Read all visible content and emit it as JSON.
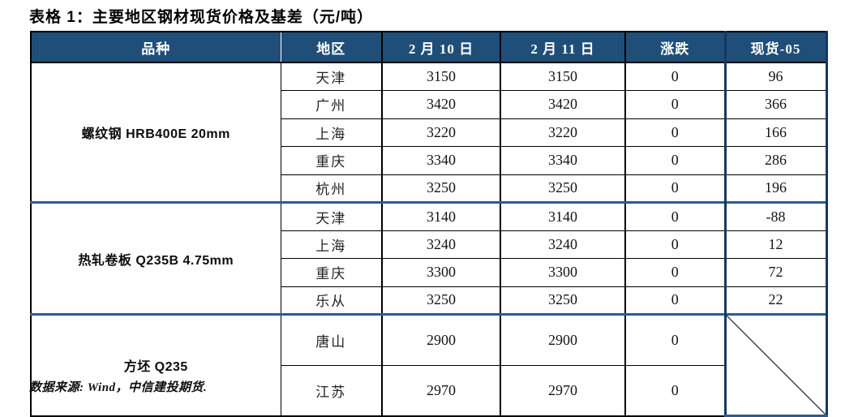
{
  "title": "表格 1：主要地区钢材现货价格及基差（元/吨）",
  "footer": {
    "source": "数据来源: Wind，中信建投期货."
  },
  "colors": {
    "header_bg": "#1F4E79",
    "header_text": "#FFFFFF",
    "section_divider_blue": "#2E5C8A",
    "basis_column_border": "#17375E",
    "grid_border": "#000000"
  },
  "table": {
    "columns": [
      "品种",
      "地区",
      "2 月 10 日",
      "2 月 11 日",
      "涨跌",
      "现货-05"
    ],
    "sections": [
      {
        "product": "螺纹钢 HRB400E 20mm",
        "rows": [
          {
            "region": "天津",
            "d10": "3150",
            "d11": "3150",
            "change": "0",
            "basis": "96"
          },
          {
            "region": "广州",
            "d10": "3420",
            "d11": "3420",
            "change": "0",
            "basis": "366"
          },
          {
            "region": "上海",
            "d10": "3220",
            "d11": "3220",
            "change": "0",
            "basis": "166"
          },
          {
            "region": "重庆",
            "d10": "3340",
            "d11": "3340",
            "change": "0",
            "basis": "286"
          },
          {
            "region": "杭州",
            "d10": "3250",
            "d11": "3250",
            "change": "0",
            "basis": "196"
          }
        ]
      },
      {
        "product": "热轧卷板 Q235B 4.75mm",
        "rows": [
          {
            "region": "天津",
            "d10": "3140",
            "d11": "3140",
            "change": "0",
            "basis": "-88"
          },
          {
            "region": "上海",
            "d10": "3240",
            "d11": "3240",
            "change": "0",
            "basis": "12"
          },
          {
            "region": "重庆",
            "d10": "3300",
            "d11": "3300",
            "change": "0",
            "basis": "72"
          },
          {
            "region": "乐从",
            "d10": "3250",
            "d11": "3250",
            "change": "0",
            "basis": "22"
          }
        ]
      },
      {
        "product": "方坯 Q235",
        "diagonal_basis": true,
        "rows": [
          {
            "region": "唐山",
            "d10": "2900",
            "d11": "2900",
            "change": "0"
          },
          {
            "region": "江苏",
            "d10": "2970",
            "d11": "2970",
            "change": "0"
          }
        ]
      }
    ]
  }
}
